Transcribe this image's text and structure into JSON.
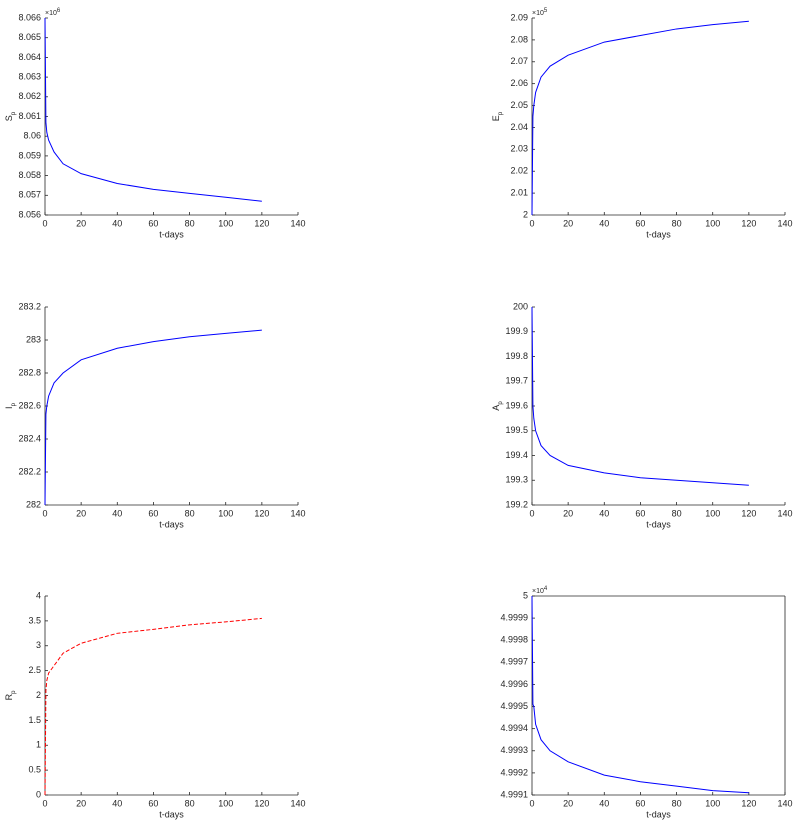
{
  "chart_data": [
    {
      "type": "line",
      "xlabel": "t-days",
      "ylabel": "S",
      "ylabel_sub": "p",
      "exponent": {
        "base": "×10",
        "power": "6"
      },
      "box": false,
      "xlim": [
        0,
        140
      ],
      "xticks": [
        0,
        20,
        40,
        60,
        80,
        100,
        120,
        140
      ],
      "ylim": [
        8.056,
        8.066
      ],
      "yticks": [
        8.056,
        8.057,
        8.058,
        8.059,
        8.06,
        8.061,
        8.062,
        8.063,
        8.064,
        8.065,
        8.066
      ],
      "x": [
        0,
        0.5,
        1,
        2,
        5,
        10,
        20,
        40,
        60,
        80,
        100,
        120
      ],
      "series": [
        {
          "color": "#0000ff",
          "dash": false,
          "values": [
            8.066,
            8.0607,
            8.0602,
            8.0598,
            8.0592,
            8.0586,
            8.0581,
            8.0576,
            8.0573,
            8.0571,
            8.0569,
            8.0567
          ]
        }
      ]
    },
    {
      "type": "line",
      "xlabel": "t-days",
      "ylabel": "E",
      "ylabel_sub": "p",
      "exponent": {
        "base": "×10",
        "power": "5"
      },
      "box": false,
      "xlim": [
        0,
        140
      ],
      "xticks": [
        0,
        20,
        40,
        60,
        80,
        100,
        120,
        140
      ],
      "ylim": [
        2,
        2.09
      ],
      "yticks": [
        2,
        2.01,
        2.02,
        2.03,
        2.04,
        2.05,
        2.06,
        2.07,
        2.08,
        2.09
      ],
      "x": [
        0,
        0.5,
        1,
        2,
        5,
        10,
        20,
        40,
        60,
        80,
        100,
        120
      ],
      "series": [
        {
          "color": "#0000ff",
          "dash": false,
          "values": [
            2,
            2.045,
            2.05,
            2.056,
            2.063,
            2.068,
            2.073,
            2.079,
            2.082,
            2.085,
            2.087,
            2.0885
          ]
        }
      ]
    },
    {
      "type": "line",
      "xlabel": "t-days",
      "ylabel": "I",
      "ylabel_sub": "p",
      "box": false,
      "xlim": [
        0,
        140
      ],
      "xticks": [
        0,
        20,
        40,
        60,
        80,
        100,
        120,
        140
      ],
      "ylim": [
        282,
        283.2
      ],
      "yticks": [
        282,
        282.2,
        282.4,
        282.6,
        282.8,
        283,
        283.2
      ],
      "x": [
        0,
        0.5,
        1,
        2,
        5,
        10,
        20,
        40,
        60,
        80,
        100,
        120
      ],
      "series": [
        {
          "color": "#0000ff",
          "dash": false,
          "values": [
            282,
            282.55,
            282.6,
            282.66,
            282.74,
            282.8,
            282.88,
            282.95,
            282.99,
            283.02,
            283.04,
            283.06
          ]
        }
      ]
    },
    {
      "type": "line",
      "xlabel": "t-days",
      "ylabel": "A",
      "ylabel_sub": "p",
      "box": false,
      "xlim": [
        0,
        140
      ],
      "xticks": [
        0,
        20,
        40,
        60,
        80,
        100,
        120,
        140
      ],
      "ylim": [
        199.2,
        200
      ],
      "yticks": [
        199.2,
        199.3,
        199.4,
        199.5,
        199.6,
        199.7,
        199.8,
        199.9,
        200
      ],
      "x": [
        0,
        0.5,
        1,
        2,
        5,
        10,
        20,
        40,
        60,
        80,
        100,
        120
      ],
      "series": [
        {
          "color": "#0000ff",
          "dash": false,
          "values": [
            200,
            199.6,
            199.55,
            199.5,
            199.44,
            199.4,
            199.36,
            199.33,
            199.31,
            199.3,
            199.29,
            199.28
          ]
        }
      ]
    },
    {
      "type": "line",
      "xlabel": "t-days",
      "ylabel": "R",
      "ylabel_sub": "p",
      "box": false,
      "xlim": [
        0,
        140
      ],
      "xticks": [
        0,
        20,
        40,
        60,
        80,
        100,
        120,
        140
      ],
      "ylim": [
        0,
        4
      ],
      "yticks": [
        0,
        0.5,
        1,
        1.5,
        2,
        2.5,
        3,
        3.5,
        4
      ],
      "x": [
        0,
        0.5,
        1,
        2,
        5,
        10,
        20,
        40,
        60,
        80,
        100,
        120
      ],
      "series": [
        {
          "color": "#ff0000",
          "dash": true,
          "values": [
            0,
            2.1,
            2.3,
            2.45,
            2.6,
            2.85,
            3.05,
            3.25,
            3.33,
            3.42,
            3.48,
            3.55
          ]
        }
      ]
    },
    {
      "type": "line",
      "xlabel": "t-days",
      "exponent": {
        "base": "×10",
        "power": "4"
      },
      "box": true,
      "xlim": [
        0,
        140
      ],
      "xticks": [
        0,
        20,
        40,
        60,
        80,
        100,
        120,
        140
      ],
      "ylim": [
        4.9991,
        5
      ],
      "yticks": [
        4.9991,
        4.9992,
        4.9993,
        4.9994,
        4.9995,
        4.9996,
        4.9997,
        4.9998,
        4.9999,
        5
      ],
      "x": [
        0,
        0.5,
        1,
        2,
        5,
        10,
        20,
        40,
        60,
        80,
        100,
        120
      ],
      "series": [
        {
          "color": "#0000ff",
          "dash": false,
          "values": [
            5,
            4.99951,
            4.9995,
            4.99942,
            4.99935,
            4.9993,
            4.99925,
            4.99919,
            4.99916,
            4.99914,
            4.99912,
            4.99911
          ]
        }
      ]
    }
  ]
}
